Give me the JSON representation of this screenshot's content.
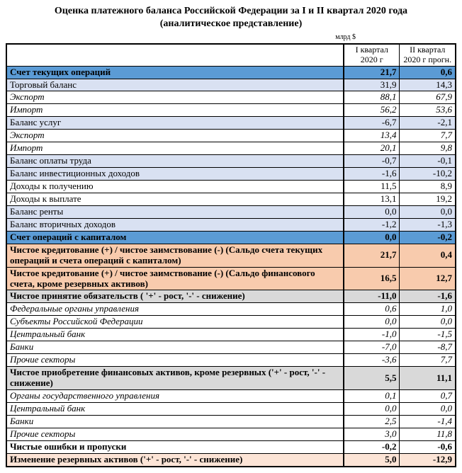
{
  "title_line1": "Оценка платежного баланса Российской Федерации за I и II квартал 2020 года",
  "title_line2": "(аналитическое представление)",
  "unit": "млрд $",
  "headers": {
    "col1": "I квартал 2020 г",
    "col2": "II квартал 2020 г прогн."
  },
  "rows": [
    {
      "label": "Счет текущих операций",
      "v1": "21,7",
      "v2": "0,6",
      "cls": "row-blue",
      "bold": true,
      "ind": 0
    },
    {
      "label": "Торговый баланс",
      "v1": "31,9",
      "v2": "14,3",
      "cls": "row-lblue",
      "ind": 1
    },
    {
      "label": "Экспорт",
      "v1": "88,1",
      "v2": "67,9",
      "italic": true,
      "ind": 2
    },
    {
      "label": "Импорт",
      "v1": "56,2",
      "v2": "53,6",
      "italic": true,
      "ind": 2
    },
    {
      "label": "Баланс услуг",
      "v1": "-6,7",
      "v2": "-2,1",
      "cls": "row-lblue",
      "ind": 1
    },
    {
      "label": "Экспорт",
      "v1": "13,4",
      "v2": "7,7",
      "italic": true,
      "ind": 2
    },
    {
      "label": "Импорт",
      "v1": "20,1",
      "v2": "9,8",
      "italic": true,
      "ind": 2
    },
    {
      "label": "Баланс оплаты труда",
      "v1": "-0,7",
      "v2": "-0,1",
      "cls": "row-lblue",
      "ind": 1
    },
    {
      "label": "Баланс инвестиционных доходов",
      "v1": "-1,6",
      "v2": "-10,2",
      "cls": "row-lblue",
      "ind": 1
    },
    {
      "label": "Доходы к получению",
      "v1": "11,5",
      "v2": "8,9",
      "ind": 2
    },
    {
      "label": "Доходы к выплате",
      "v1": "13,1",
      "v2": "19,2",
      "ind": 2
    },
    {
      "label": "Баланс ренты",
      "v1": "0,0",
      "v2": "0,0",
      "cls": "row-lblue",
      "ind": 1
    },
    {
      "label": "Баланс вторичных доходов",
      "v1": "-1,2",
      "v2": "-1,3",
      "cls": "row-lblue",
      "ind": 1
    },
    {
      "label": "Счет операций с капиталом",
      "v1": "0,0",
      "v2": "-0,2",
      "cls": "row-blue",
      "bold": true,
      "ind": 0
    },
    {
      "label": "Чистое кредитование (+) / чистое заимствование (-)  (Сальдо счета текущих операций и счета операций с капиталом)",
      "v1": "21,7",
      "v2": "0,4",
      "cls": "row-orange",
      "bold": true,
      "ind": 0
    },
    {
      "label": "Чистое кредитование (+) / чистое заимствование (-)  (Сальдо финансового счета, кроме резервных активов)",
      "v1": "16,5",
      "v2": "12,7",
      "cls": "row-orange",
      "bold": true,
      "ind": 0
    },
    {
      "label": "Чистое принятие обязательств ( '+' - рост, '-' - снижение)",
      "v1": "-11,0",
      "v2": "-1,6",
      "cls": "row-gray",
      "bold": true,
      "ind": 1
    },
    {
      "label": "Федеральные органы управления",
      "v1": "0,6",
      "v2": "1,0",
      "italic": true,
      "ind": 2
    },
    {
      "label": "Субъекты Российской Федерации",
      "v1": "0,0",
      "v2": "0,0",
      "italic": true,
      "ind": 2
    },
    {
      "label": "Центральный банк",
      "v1": "-1,0",
      "v2": "-1,5",
      "italic": true,
      "ind": 2
    },
    {
      "label": "Банки",
      "v1": "-7,0",
      "v2": "-8,7",
      "italic": true,
      "ind": 2
    },
    {
      "label": "Прочие секторы",
      "v1": "-3,6",
      "v2": "7,7",
      "italic": true,
      "ind": 2
    },
    {
      "label": "Чистое приобретение финансовых активов, кроме резервных  ('+' - рост, '-' - снижение)",
      "v1": "5,5",
      "v2": "11,1",
      "cls": "row-gray",
      "bold": true,
      "ind": 1
    },
    {
      "label": "Органы государственного управления",
      "v1": "0,1",
      "v2": "0,7",
      "italic": true,
      "ind": 2
    },
    {
      "label": "Центральный банк",
      "v1": "0,0",
      "v2": "0,0",
      "italic": true,
      "ind": 2
    },
    {
      "label": "Банки",
      "v1": "2,5",
      "v2": "-1,4",
      "italic": true,
      "ind": 2
    },
    {
      "label": "Прочие секторы",
      "v1": "3,0",
      "v2": "11,8",
      "italic": true,
      "ind": 2
    },
    {
      "label": "Чистые ошибки и пропуски",
      "v1": "-0,2",
      "v2": "-0,6",
      "bold": true,
      "ind": 0
    },
    {
      "label": "Изменение резервных активов ('+' - рост, '-' - снижение)",
      "v1": "5,0",
      "v2": "-12,9",
      "cls": "row-pink",
      "bold": true,
      "ind": 0
    }
  ]
}
